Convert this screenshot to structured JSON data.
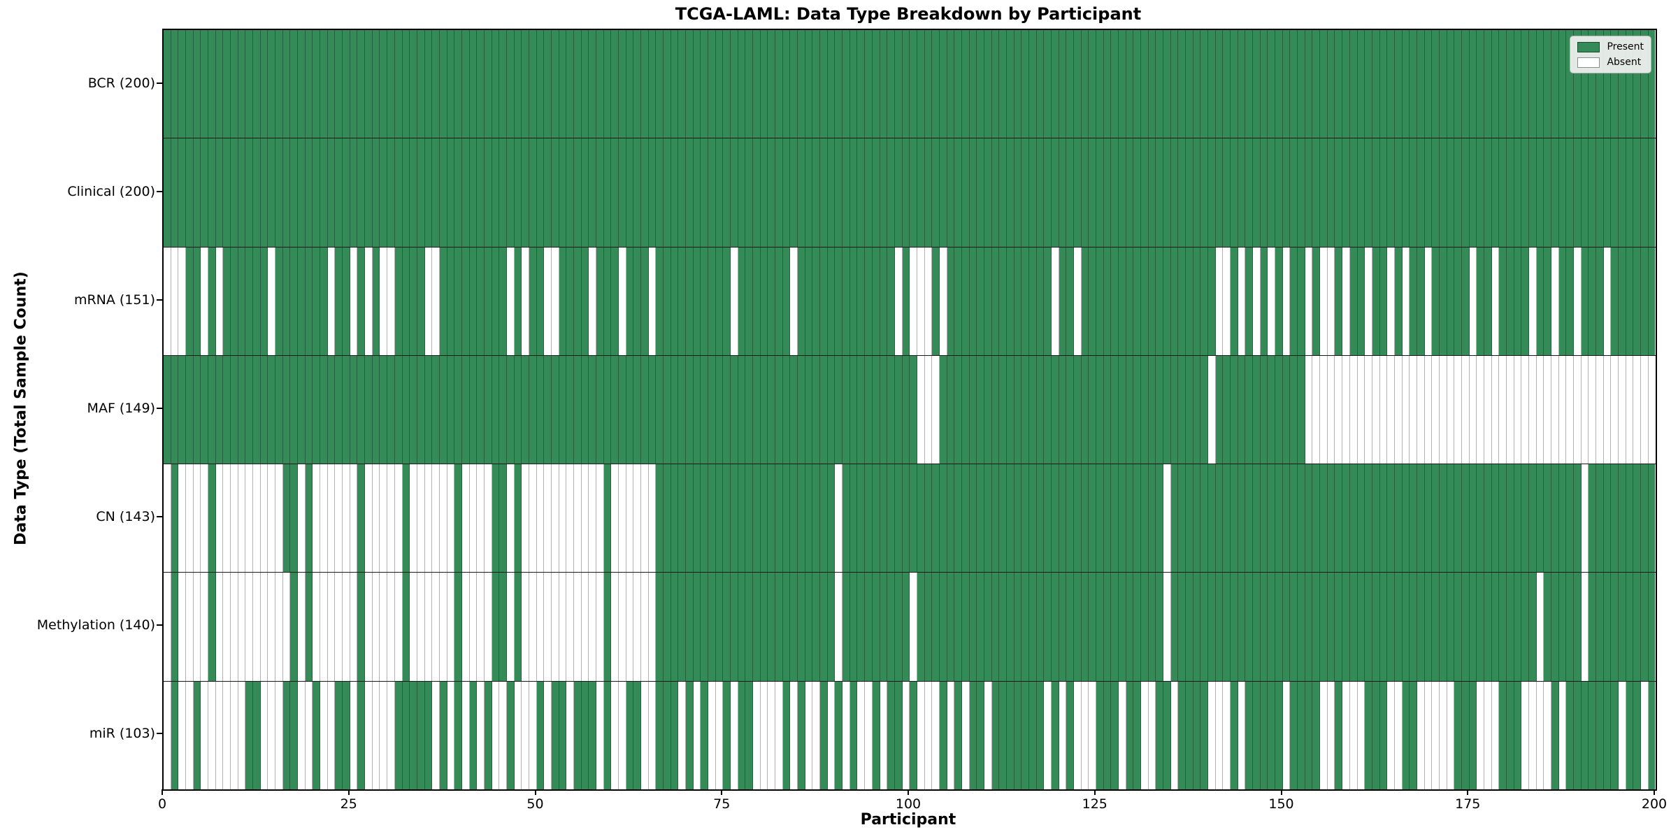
{
  "chart_data": {
    "type": "heatmap",
    "title": "TCGA-LAML: Data Type Breakdown by Participant",
    "xlabel": "Participant",
    "ylabel": "Data Type (Total Sample Count)",
    "n_participants": 200,
    "x_ticks": [
      0,
      25,
      50,
      75,
      100,
      125,
      150,
      175,
      200
    ],
    "present_color": "#348b57",
    "absent_color": "#ffffff",
    "legend": [
      {
        "label": "Present",
        "value": "present"
      },
      {
        "label": "Absent",
        "value": "absent"
      }
    ],
    "rows": [
      {
        "name": "BCR",
        "label": "BCR (200)",
        "present_count": 200,
        "absent": []
      },
      {
        "name": "Clinical",
        "label": "Clinical (200)",
        "present_count": 200,
        "absent": []
      },
      {
        "name": "mRNA",
        "label": "mRNA (151)",
        "present_count": 151,
        "absent": [
          0,
          1,
          2,
          5,
          7,
          14,
          22,
          25,
          27,
          29,
          30,
          35,
          36,
          46,
          48,
          51,
          52,
          57,
          61,
          65,
          76,
          84,
          98,
          100,
          101,
          102,
          104,
          119,
          122,
          141,
          142,
          144,
          146,
          148,
          150,
          153,
          155,
          156,
          158,
          161,
          164,
          166,
          169,
          175,
          178,
          183,
          186,
          189,
          193
        ]
      },
      {
        "name": "MAF",
        "label": "MAF (149)",
        "present_count": 149,
        "absent": [
          101,
          102,
          103,
          140,
          153,
          154,
          155,
          156,
          157,
          158,
          159,
          160,
          161,
          162,
          163,
          164,
          165,
          166,
          167,
          168,
          169,
          170,
          171,
          172,
          173,
          174,
          175,
          176,
          177,
          178,
          179,
          180,
          181,
          182,
          183,
          184,
          185,
          186,
          187,
          188,
          189,
          190,
          191,
          192,
          193,
          194,
          195,
          196,
          197,
          198,
          199
        ]
      },
      {
        "name": "CN",
        "label": "CN (143)",
        "present_count": 143,
        "absent": [
          0,
          2,
          3,
          4,
          5,
          7,
          8,
          9,
          10,
          11,
          12,
          13,
          14,
          15,
          18,
          20,
          21,
          22,
          23,
          24,
          25,
          27,
          28,
          29,
          30,
          31,
          33,
          34,
          35,
          36,
          37,
          38,
          40,
          41,
          42,
          43,
          46,
          48,
          49,
          50,
          51,
          52,
          53,
          54,
          55,
          56,
          57,
          58,
          60,
          61,
          62,
          63,
          64,
          65,
          90,
          134,
          190
        ]
      },
      {
        "name": "Methylation",
        "label": "Methylation (140)",
        "present_count": 140,
        "absent": [
          0,
          2,
          3,
          4,
          5,
          7,
          8,
          9,
          10,
          11,
          12,
          13,
          14,
          15,
          16,
          18,
          20,
          21,
          22,
          23,
          24,
          25,
          27,
          28,
          29,
          30,
          31,
          33,
          34,
          35,
          36,
          37,
          38,
          40,
          41,
          42,
          43,
          46,
          48,
          49,
          50,
          51,
          52,
          53,
          54,
          55,
          56,
          57,
          58,
          60,
          61,
          62,
          63,
          64,
          65,
          90,
          100,
          134,
          184,
          190
        ]
      },
      {
        "name": "miR",
        "label": "miR (103)",
        "present_count": 103,
        "absent": [
          0,
          2,
          3,
          5,
          6,
          7,
          8,
          9,
          10,
          13,
          14,
          15,
          18,
          19,
          21,
          22,
          25,
          27,
          28,
          29,
          30,
          36,
          38,
          40,
          42,
          44,
          45,
          47,
          48,
          49,
          51,
          54,
          58,
          60,
          61,
          64,
          65,
          69,
          71,
          73,
          74,
          76,
          79,
          80,
          81,
          82,
          84,
          86,
          87,
          89,
          91,
          93,
          94,
          96,
          99,
          101,
          102,
          103,
          105,
          107,
          110,
          118,
          120,
          122,
          123,
          124,
          128,
          131,
          132,
          135,
          140,
          141,
          142,
          144,
          150,
          155,
          156,
          158,
          159,
          160,
          164,
          165,
          168,
          169,
          170,
          171,
          172,
          176,
          177,
          178,
          182,
          183,
          184,
          185,
          187,
          195,
          198
        ]
      }
    ]
  }
}
